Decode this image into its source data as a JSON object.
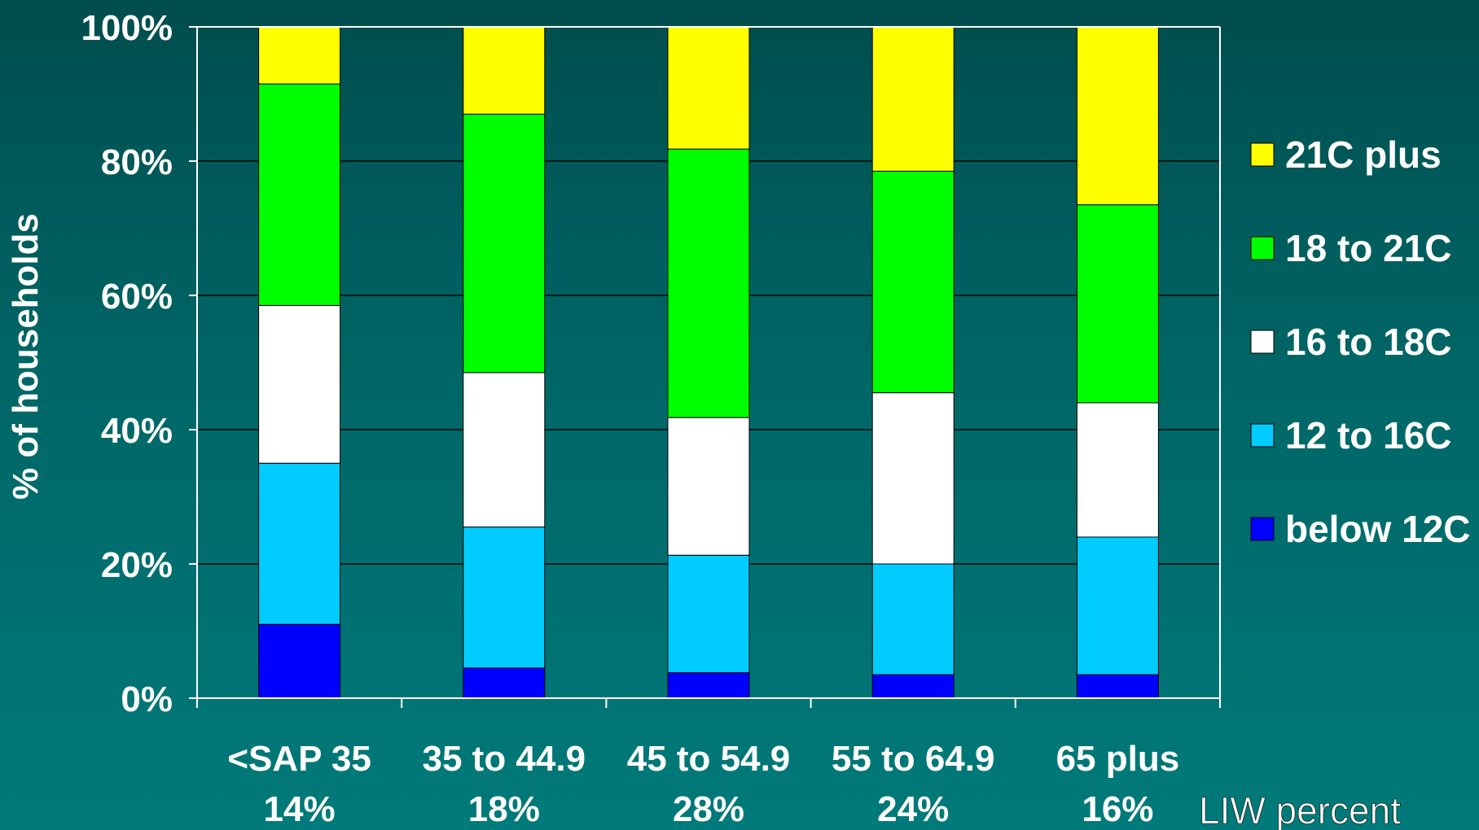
{
  "chart_data": {
    "type": "bar",
    "stacked": true,
    "ylabel": "% of households",
    "ylim": [
      0,
      100
    ],
    "y_ticks": [
      "0%",
      "20%",
      "40%",
      "60%",
      "80%",
      "100%"
    ],
    "categories": [
      "<SAP 35",
      "35 to 44.9",
      "45 to 54.9",
      "55 to 64.9",
      "65 plus"
    ],
    "category_sublabels": [
      "14%",
      "18%",
      "28%",
      "24%",
      "16%"
    ],
    "x_note": "LIW percent",
    "legend_position": "right",
    "series": [
      {
        "name": "below 12C",
        "color": "#0000ff",
        "values": [
          11,
          4.5,
          3.8,
          3.5,
          3.5
        ]
      },
      {
        "name": "12 to 16C",
        "color": "#00ccff",
        "values": [
          24,
          21,
          17.5,
          16.5,
          20.5
        ]
      },
      {
        "name": "16 to 18C",
        "color": "#ffffff",
        "values": [
          23.5,
          23,
          20.5,
          25.5,
          20
        ]
      },
      {
        "name": "18 to 21C",
        "color": "#00ff00",
        "values": [
          33,
          38.5,
          40,
          33,
          29.5
        ]
      },
      {
        "name": "21C plus",
        "color": "#ffff00",
        "values": [
          8.5,
          13,
          18.2,
          21.5,
          26.5
        ]
      }
    ]
  }
}
